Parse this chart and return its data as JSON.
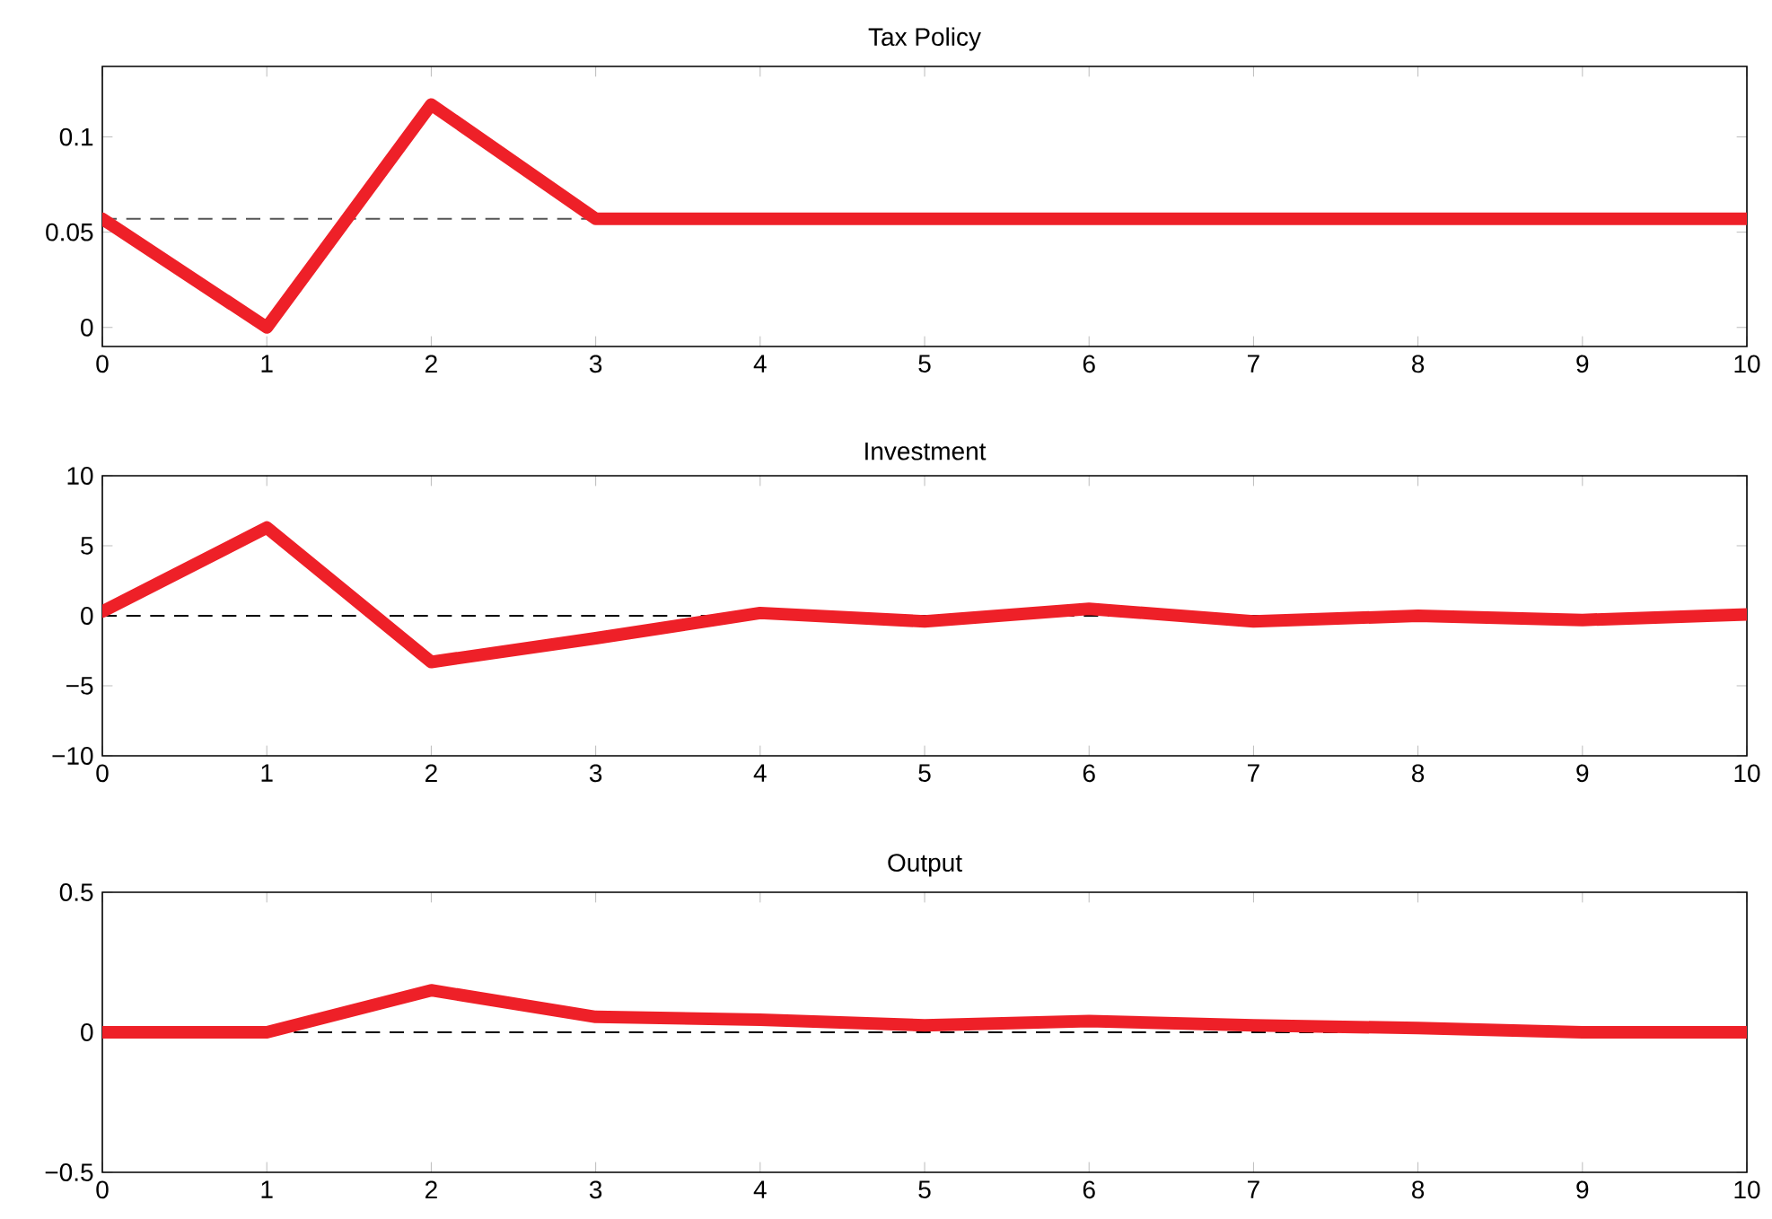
{
  "chart_data": [
    {
      "type": "line",
      "title": "Tax Policy",
      "x": [
        0,
        1,
        2,
        3,
        4,
        5,
        6,
        7,
        8,
        9,
        10
      ],
      "xlim": [
        0,
        10
      ],
      "xticks": [
        0,
        1,
        2,
        3,
        4,
        5,
        6,
        7,
        8,
        9,
        10
      ],
      "ylim": [
        -0.01,
        0.137
      ],
      "yticks": [
        0,
        0.05,
        0.1
      ],
      "series": [
        {
          "color": "#ee2028",
          "values": [
            0.057,
            0,
            0.117,
            0.057,
            0.057,
            0.057,
            0.057,
            0.057,
            0.057,
            0.057,
            0.057
          ]
        }
      ],
      "ref_lines": [
        {
          "axis": "y",
          "value": 0.057,
          "color": "#555555",
          "line_style": "dashed"
        }
      ]
    },
    {
      "type": "line",
      "title": "Investment",
      "x": [
        0,
        1,
        2,
        3,
        4,
        5,
        6,
        7,
        8,
        9,
        10
      ],
      "xlim": [
        0,
        10
      ],
      "xticks": [
        0,
        1,
        2,
        3,
        4,
        5,
        6,
        7,
        8,
        9,
        10
      ],
      "ylim": [
        -10,
        10
      ],
      "yticks": [
        {
          "value": -10,
          "label": "−10"
        },
        {
          "value": -5,
          "label": "−5"
        },
        0,
        5,
        10
      ],
      "series": [
        {
          "color": "#ee2028",
          "values": [
            0.3,
            6.3,
            -3.3,
            -1.6,
            0.2,
            -0.4,
            0.5,
            -0.4,
            0,
            -0.3,
            0.1
          ]
        }
      ],
      "ref_lines": [
        {
          "axis": "y",
          "value": 0,
          "color": "#000000",
          "line_style": "dashed"
        }
      ]
    },
    {
      "type": "line",
      "title": "Output",
      "x": [
        0,
        1,
        2,
        3,
        4,
        5,
        6,
        7,
        8,
        9,
        10
      ],
      "xlim": [
        0,
        10
      ],
      "xticks": [
        0,
        1,
        2,
        3,
        4,
        5,
        6,
        7,
        8,
        9,
        10
      ],
      "ylim": [
        -0.5,
        0.5
      ],
      "yticks": [
        {
          "value": -0.5,
          "label": "−0.5"
        },
        0,
        0.5
      ],
      "series": [
        {
          "color": "#ee2028",
          "values": [
            0,
            0,
            0.15,
            0.055,
            0.045,
            0.025,
            0.04,
            0.025,
            0.015,
            0,
            0
          ]
        }
      ],
      "ref_lines": [
        {
          "axis": "y",
          "value": 0,
          "color": "#000000",
          "line_style": "dashed"
        }
      ]
    }
  ]
}
